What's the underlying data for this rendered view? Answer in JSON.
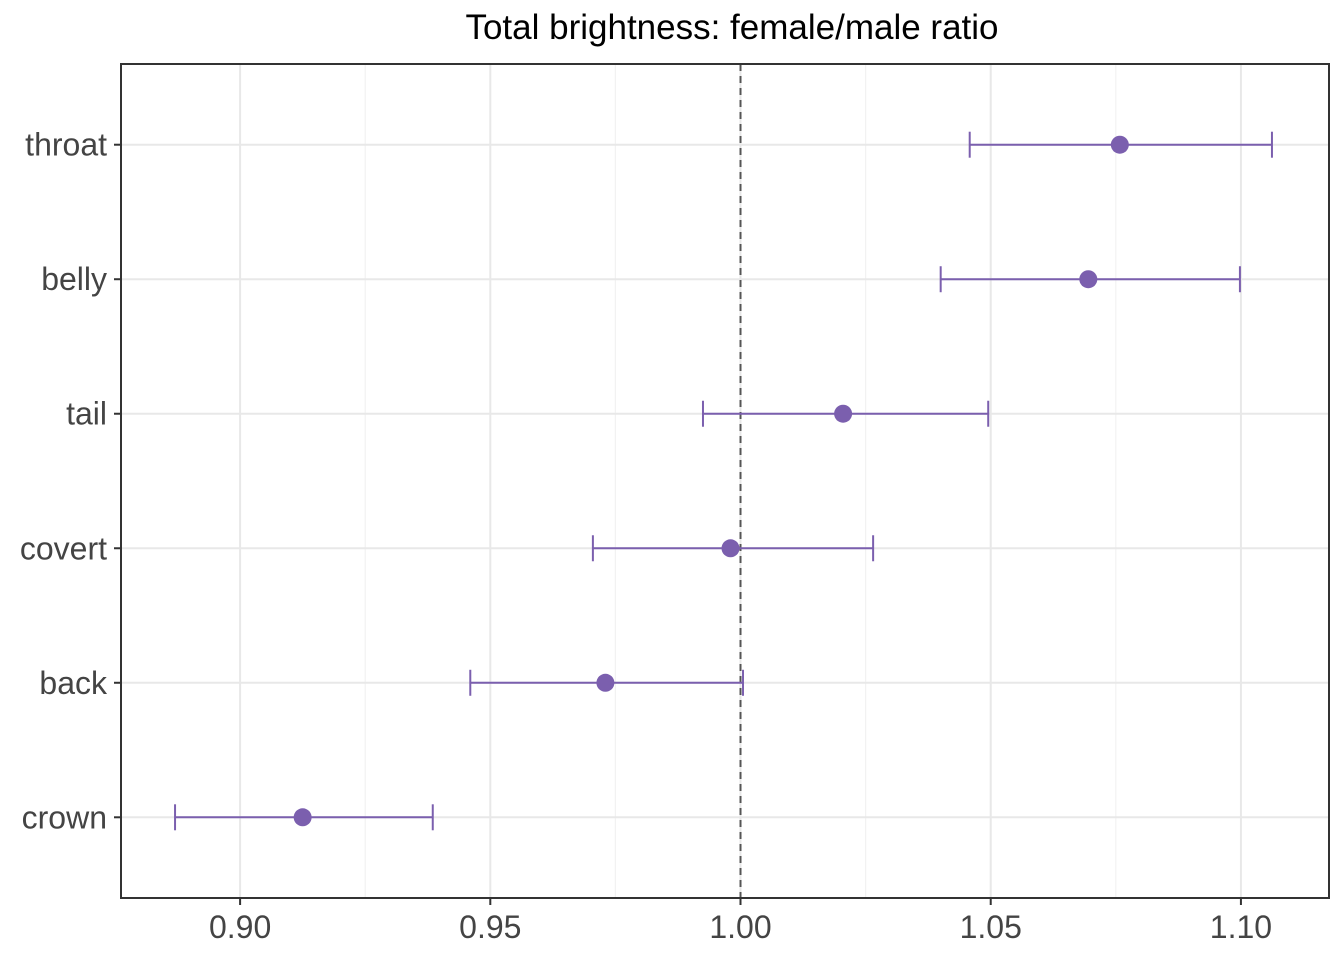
{
  "chart_data": {
    "type": "scatter",
    "title": "Total brightness: female/male ratio",
    "xlabel": "",
    "ylabel": "",
    "xlim": [
      0.8762,
      1.1176
    ],
    "x_ticks": [
      "0.90",
      "0.95",
      "1.00",
      "1.05",
      "1.10"
    ],
    "x_tick_values": [
      0.9,
      0.95,
      1.0,
      1.05,
      1.1
    ],
    "reference_line": 1.0,
    "grid": true,
    "categories": [
      "crown",
      "back",
      "covert",
      "tail",
      "belly",
      "throat"
    ],
    "points": [
      {
        "category": "crown",
        "estimate": 0.9125,
        "lower": 0.887,
        "upper": 0.9385
      },
      {
        "category": "back",
        "estimate": 0.973,
        "lower": 0.946,
        "upper": 1.0005
      },
      {
        "category": "covert",
        "estimate": 0.998,
        "lower": 0.9705,
        "upper": 1.0265
      },
      {
        "category": "tail",
        "estimate": 1.0205,
        "lower": 0.9925,
        "upper": 1.0495
      },
      {
        "category": "belly",
        "estimate": 1.0695,
        "lower": 1.04,
        "upper": 1.0998
      },
      {
        "category": "throat",
        "estimate": 1.0758,
        "lower": 1.0458,
        "upper": 1.1062
      }
    ],
    "colors": {
      "point": "#7b5fae",
      "errorbar": "#7b5fae",
      "grid_major": "#e8e8e8",
      "grid_minor": "#f2f2f2",
      "panel_border": "#333333",
      "reference_line": "#555555",
      "tick_text": "#444444"
    }
  }
}
